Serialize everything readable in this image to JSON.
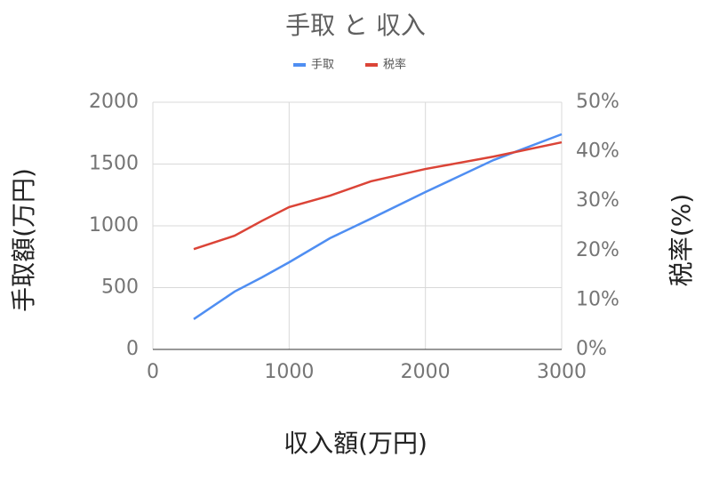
{
  "chart_data": {
    "type": "line",
    "title": "手取 と 収入",
    "x_label": "収入額(万円)",
    "y_label": "手取額(万円)",
    "y2_label": "税率(%)",
    "x": [
      300,
      600,
      800,
      1000,
      1300,
      1600,
      2000,
      2500,
      3000
    ],
    "series": [
      {
        "name": "手取",
        "color": "#4f8ef2",
        "values": [
          245,
          468,
          583,
          705,
          900,
          1058,
          1273,
          1532,
          1741
        ]
      },
      {
        "name": "税率",
        "color": "#db4437",
        "axis": "y2",
        "values": [
          20.3,
          23,
          26,
          28.8,
          31.1,
          34,
          36.5,
          39,
          41.9
        ]
      }
    ],
    "xlim": [
      0,
      3000
    ],
    "xticks": [
      0,
      1000,
      2000,
      3000
    ],
    "ylim": [
      0,
      2000
    ],
    "yticks": [
      0,
      500,
      1000,
      1500,
      2000
    ],
    "y2lim": [
      0,
      50
    ],
    "y2ticks": [
      {
        "value": 0,
        "label": "0%"
      },
      {
        "value": 10,
        "label": "10%"
      },
      {
        "value": 20,
        "label": "20%"
      },
      {
        "value": 30,
        "label": "30%"
      },
      {
        "value": 40,
        "label": "40%"
      },
      {
        "value": 50,
        "label": "50%"
      }
    ],
    "grid": true,
    "legend": "top"
  }
}
